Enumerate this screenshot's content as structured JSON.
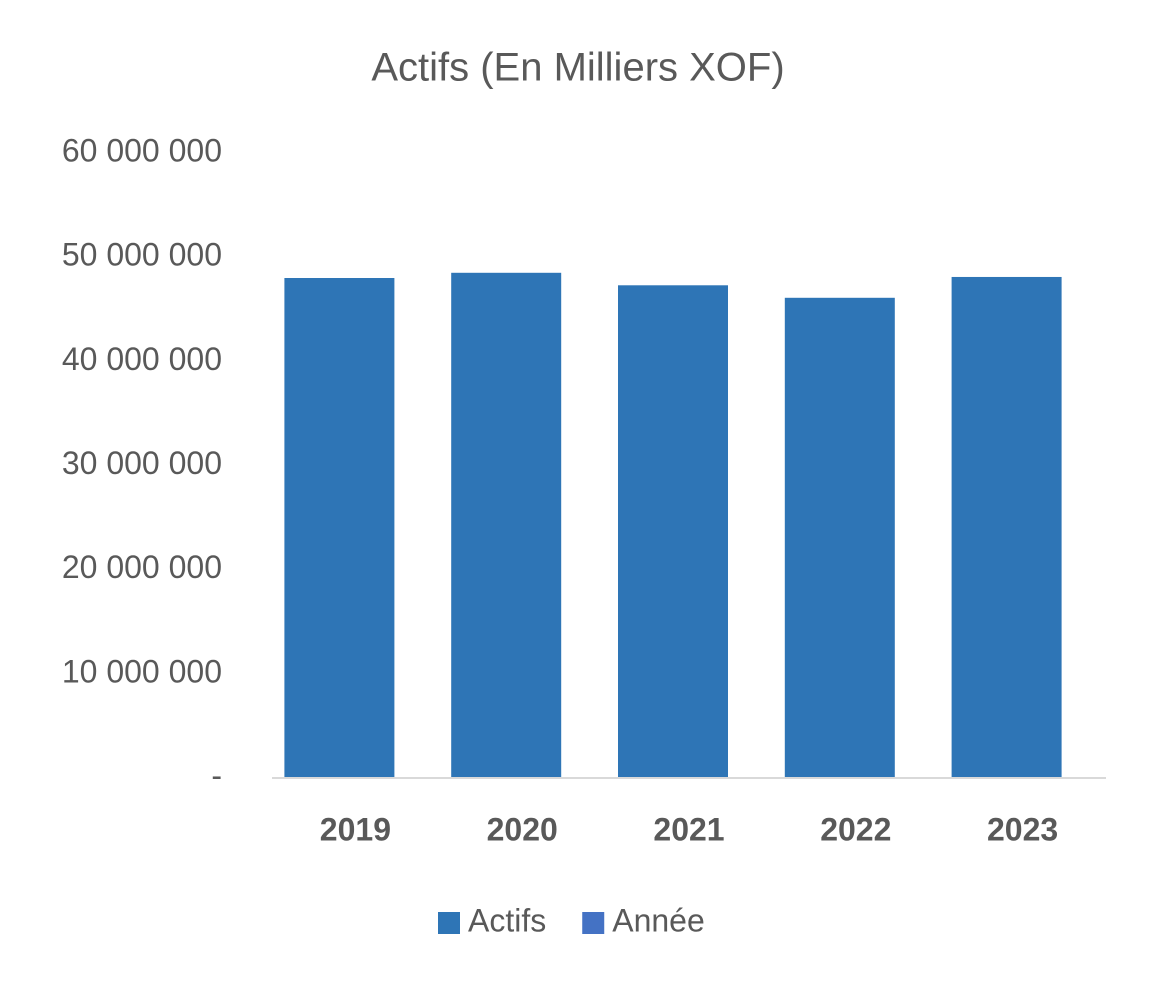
{
  "chart_data": {
    "type": "bar",
    "title": "Actifs (En Milliers XOF)",
    "categories": [
      "2019",
      "2020",
      "2021",
      "2022",
      "2023"
    ],
    "series": [
      {
        "name": "Actifs",
        "color": "#2e75b6",
        "values": [
          48000000,
          48500000,
          47300000,
          46100000,
          48100000
        ]
      },
      {
        "name": "Année",
        "color": "#4472c4",
        "values": [
          null,
          null,
          null,
          null,
          null
        ]
      }
    ],
    "ylim": [
      0,
      60000000
    ],
    "yticks": [
      {
        "value": 0,
        "label": "-"
      },
      {
        "value": 10000000,
        "label": "10 000 000"
      },
      {
        "value": 20000000,
        "label": "20 000 000"
      },
      {
        "value": 30000000,
        "label": "30 000 000"
      },
      {
        "value": 40000000,
        "label": "40 000 000"
      },
      {
        "value": 50000000,
        "label": "50 000 000"
      },
      {
        "value": 60000000,
        "label": "60 000 000"
      }
    ],
    "grid": false,
    "legend": "bottom"
  }
}
